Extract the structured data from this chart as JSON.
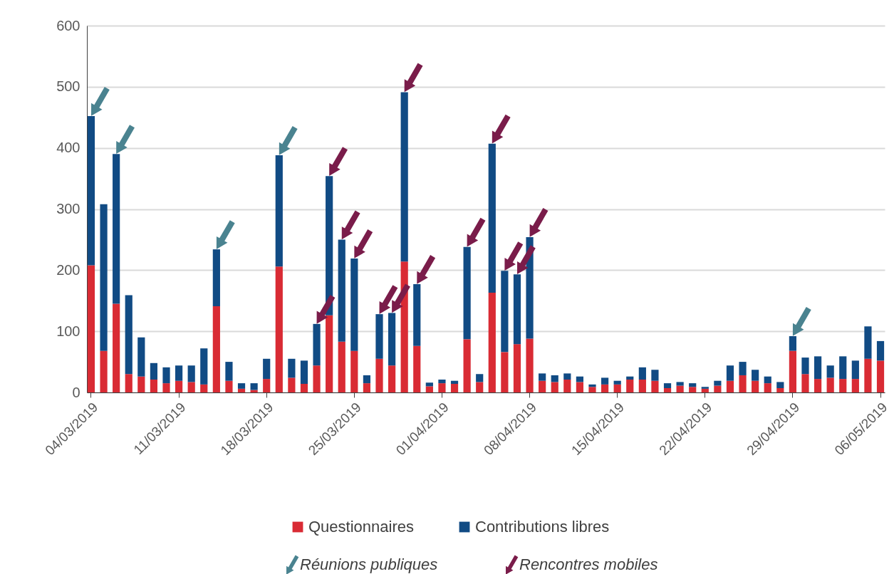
{
  "chart_data": {
    "type": "bar",
    "stacked": true,
    "categories": [
      "04/03/2019",
      null,
      null,
      null,
      null,
      null,
      null,
      "11/03/2019",
      null,
      null,
      null,
      null,
      null,
      null,
      "18/03/2019",
      null,
      null,
      null,
      null,
      null,
      null,
      "25/03/2019",
      null,
      null,
      null,
      null,
      null,
      null,
      "01/04/2019",
      null,
      null,
      null,
      null,
      null,
      null,
      "08/04/2019",
      null,
      null,
      null,
      null,
      null,
      null,
      "15/04/2019",
      null,
      null,
      null,
      null,
      null,
      null,
      "22/04/2019",
      null,
      null,
      null,
      null,
      null,
      null,
      "29/04/2019",
      null,
      null,
      null,
      null,
      null,
      null,
      "06/05/2019"
    ],
    "series": [
      {
        "name": "Questionnaires",
        "color": "#d92b34",
        "values": [
          208,
          68,
          145,
          30,
          26,
          21,
          15,
          19,
          17,
          13,
          141,
          19,
          6,
          4,
          22,
          206,
          24,
          14,
          44,
          126,
          83,
          68,
          15,
          55,
          44,
          214,
          76,
          10,
          15,
          14,
          87,
          17,
          163,
          66,
          79,
          88,
          19,
          17,
          21,
          17,
          9,
          13,
          13,
          21,
          21,
          19,
          7,
          11,
          9,
          6,
          11,
          19,
          28,
          19,
          15,
          7,
          68,
          30,
          22,
          24,
          22,
          22,
          55,
          52
        ]
      },
      {
        "name": "Contributions libres",
        "color": "#114b84",
        "values": [
          244,
          240,
          245,
          129,
          64,
          27,
          26,
          25,
          27,
          59,
          93,
          31,
          9,
          11,
          33,
          182,
          31,
          38,
          68,
          228,
          167,
          151,
          13,
          73,
          86,
          277,
          101,
          6,
          6,
          5,
          151,
          13,
          244,
          133,
          114,
          166,
          12,
          11,
          10,
          9,
          4,
          11,
          6,
          5,
          20,
          18,
          8,
          6,
          6,
          3,
          8,
          25,
          22,
          18,
          11,
          10,
          24,
          27,
          37,
          20,
          37,
          30,
          53,
          32
        ]
      },
      {
        "name": "Réunions publiques",
        "type": "scatter",
        "color": "#4a8390",
        "values": [
          476,
          null,
          414,
          null,
          null,
          null,
          null,
          null,
          null,
          null,
          258,
          null,
          null,
          null,
          null,
          412,
          null,
          null,
          null,
          null,
          null,
          null,
          null,
          null,
          null,
          null,
          null,
          null,
          null,
          null,
          null,
          null,
          null,
          null,
          null,
          null,
          null,
          null,
          null,
          null,
          null,
          null,
          null,
          null,
          null,
          null,
          null,
          null,
          null,
          null,
          null,
          null,
          null,
          null,
          null,
          null,
          116,
          null,
          null,
          null,
          null,
          null,
          null,
          null
        ]
      },
      {
        "name": "Rencontres mobiles",
        "type": "scatter",
        "color": "#7a1c4a",
        "values": [
          null,
          null,
          null,
          null,
          null,
          null,
          null,
          null,
          null,
          null,
          null,
          null,
          null,
          null,
          null,
          null,
          null,
          null,
          136,
          378,
          274,
          243,
          null,
          152,
          154,
          515,
          201,
          null,
          null,
          null,
          262,
          null,
          431,
          223,
          217,
          278,
          null,
          null,
          null,
          null,
          null,
          null,
          null,
          null,
          null,
          null,
          null,
          null,
          null,
          null,
          null,
          null,
          null,
          null,
          null,
          null,
          null,
          null,
          null,
          null,
          null,
          null,
          null,
          null
        ]
      }
    ],
    "ylim": [
      0,
      600
    ],
    "yticks": [
      0,
      100,
      200,
      300,
      400,
      500,
      600
    ],
    "grid": "y",
    "legend": "bottom"
  }
}
